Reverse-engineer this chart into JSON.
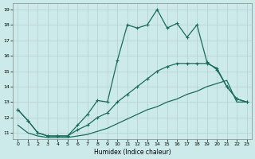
{
  "xlabel": "Humidex (Indice chaleur)",
  "xlim": [
    -0.5,
    23.5
  ],
  "ylim": [
    10.6,
    19.4
  ],
  "xticks": [
    0,
    1,
    2,
    3,
    4,
    5,
    6,
    7,
    8,
    9,
    10,
    11,
    12,
    13,
    14,
    15,
    16,
    17,
    18,
    19,
    20,
    21,
    22,
    23
  ],
  "yticks": [
    11,
    12,
    13,
    14,
    15,
    16,
    17,
    18,
    19
  ],
  "bg_color": "#cceaea",
  "grid_color": "#b5d0d0",
  "line_color": "#1a6b5a",
  "curve1_x": [
    0,
    1,
    2,
    3,
    4,
    5,
    6,
    7,
    8,
    9,
    10,
    11,
    12,
    13,
    14,
    15,
    16,
    17,
    18,
    19,
    20,
    21,
    22,
    23
  ],
  "curve1_y": [
    12.5,
    11.8,
    11.0,
    10.8,
    10.8,
    10.8,
    11.5,
    12.2,
    13.1,
    13.0,
    15.7,
    18.0,
    17.8,
    18.0,
    19.0,
    17.8,
    18.1,
    17.2,
    18.0,
    15.6,
    15.1,
    14.0,
    13.2,
    13.0
  ],
  "curve2_x": [
    0,
    1,
    2,
    3,
    4,
    5,
    6,
    7,
    8,
    9,
    10,
    11,
    12,
    13,
    14,
    15,
    16,
    17,
    18,
    19,
    20,
    21,
    22,
    23
  ],
  "curve2_y": [
    12.5,
    11.8,
    11.0,
    10.8,
    10.8,
    10.8,
    11.2,
    11.5,
    12.0,
    12.3,
    13.0,
    13.5,
    14.0,
    14.5,
    15.0,
    15.3,
    15.5,
    15.5,
    15.5,
    15.5,
    15.2,
    14.0,
    13.2,
    13.0
  ],
  "curve3_x": [
    0,
    1,
    2,
    3,
    4,
    5,
    6,
    7,
    8,
    9,
    10,
    11,
    12,
    13,
    14,
    15,
    16,
    17,
    18,
    19,
    20,
    21,
    22,
    23
  ],
  "curve3_y": [
    11.5,
    11.0,
    10.8,
    10.7,
    10.7,
    10.7,
    10.8,
    10.9,
    11.1,
    11.3,
    11.6,
    11.9,
    12.2,
    12.5,
    12.7,
    13.0,
    13.2,
    13.5,
    13.7,
    14.0,
    14.2,
    14.4,
    13.0,
    13.0
  ]
}
